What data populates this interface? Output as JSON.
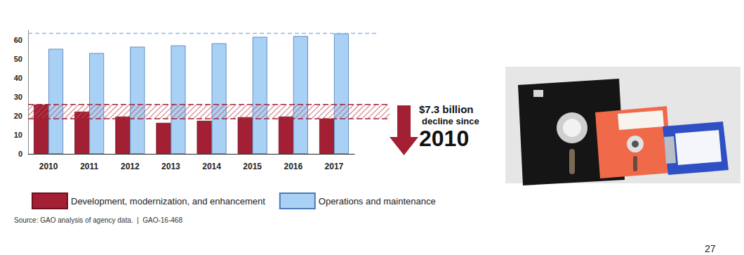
{
  "chart_data": {
    "type": "bar",
    "categories": [
      "2010",
      "2011",
      "2012",
      "2013",
      "2014",
      "2015",
      "2016",
      "2017"
    ],
    "series": [
      {
        "name": "Development, modernization, and enhancement",
        "color": "#a31f34",
        "values": [
          25.9,
          22.2,
          19.6,
          16.3,
          17.4,
          19.3,
          19.6,
          18.5
        ]
      },
      {
        "name": "Operations and maintenance",
        "color": "#a9d1f5",
        "values": [
          55.2,
          53.0,
          56.3,
          57.0,
          58.1,
          61.5,
          61.9,
          63.3
        ]
      }
    ],
    "ylim": [
      0,
      65
    ],
    "yticks": [
      0,
      10,
      20,
      30,
      40,
      50,
      60
    ],
    "grid": false,
    "legend": "bottom",
    "annotations": [
      "$7.3 billion",
      "decline since",
      "2010"
    ],
    "source": "Source: GAO analysis of agency data.  |  GAO-16-468"
  },
  "page_number": "27"
}
